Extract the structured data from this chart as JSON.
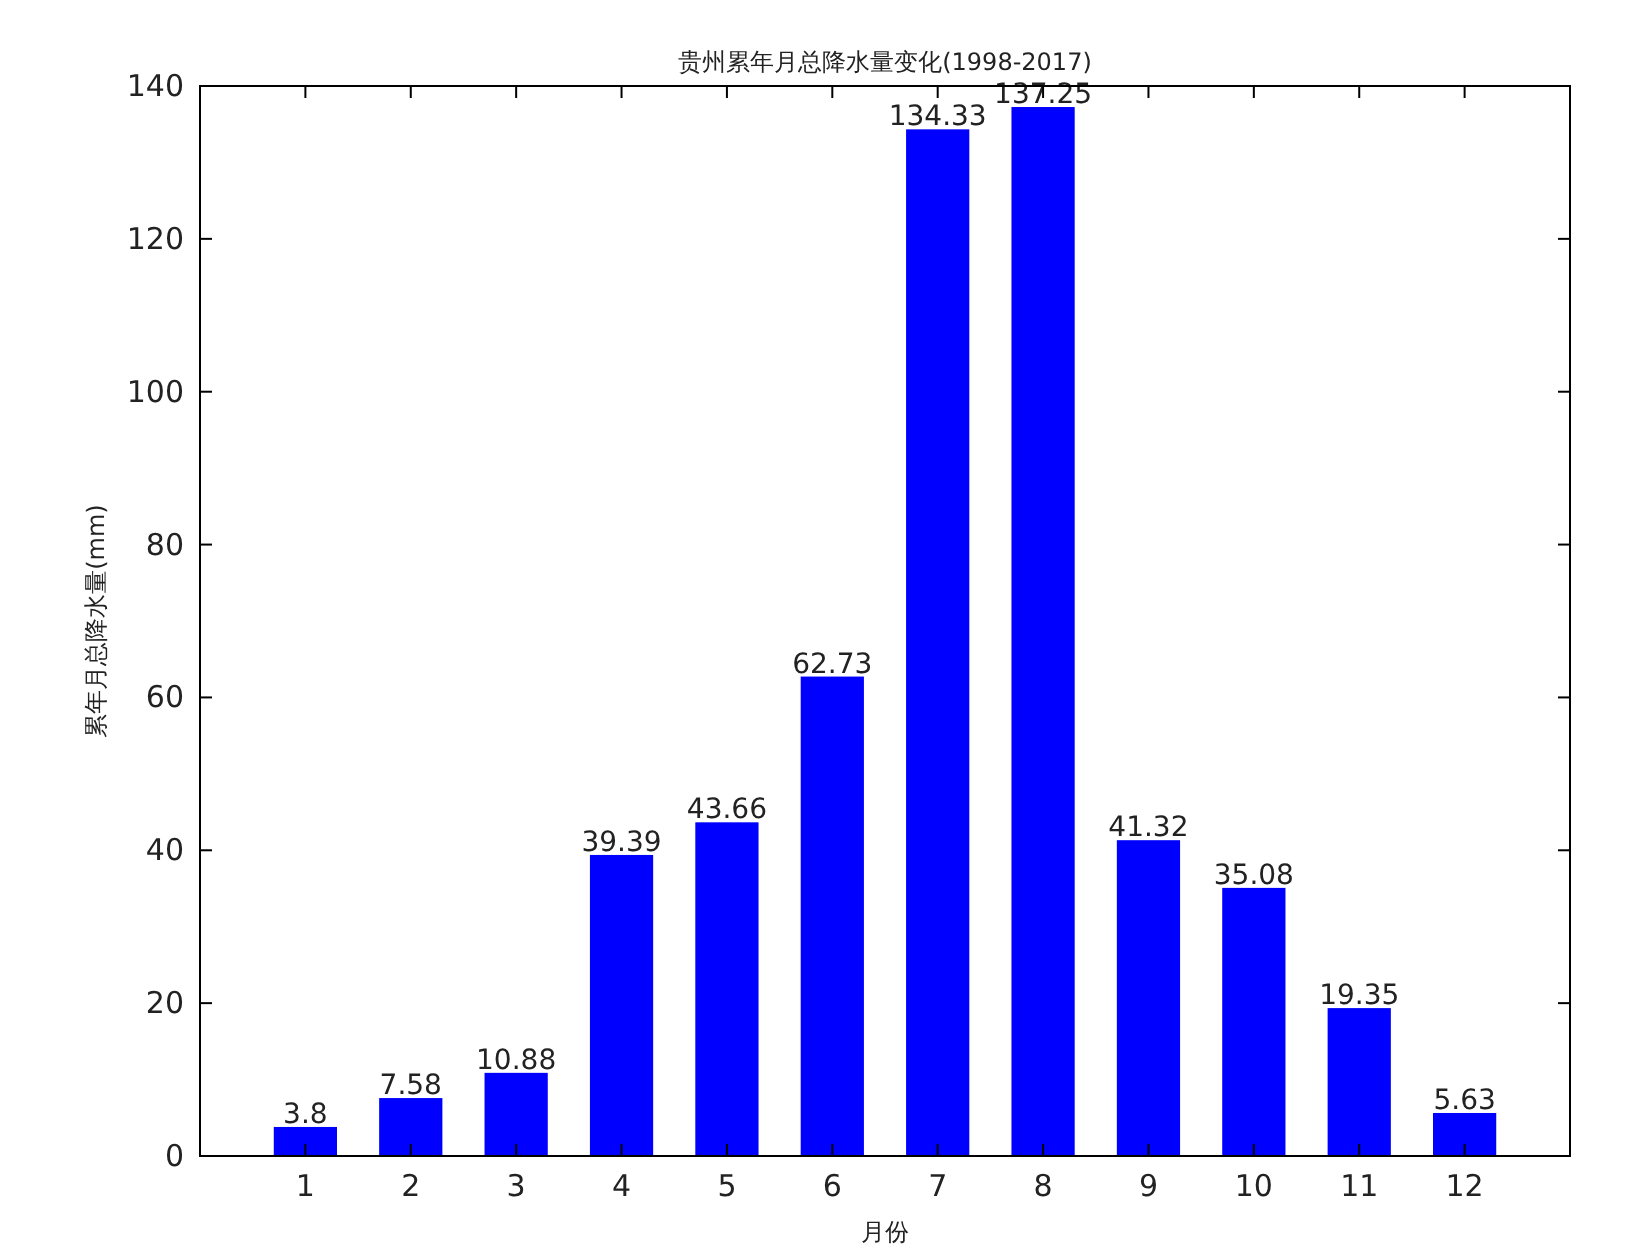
{
  "chart_data": {
    "type": "bar",
    "title": "贵州累年月总降水量变化(1998-2017)",
    "xlabel": "月份",
    "ylabel": "累年月总降水量(mm)",
    "categories": [
      "1",
      "2",
      "3",
      "4",
      "5",
      "6",
      "7",
      "8",
      "9",
      "10",
      "11",
      "12"
    ],
    "values": [
      3.8,
      7.58,
      10.88,
      39.39,
      43.66,
      62.73,
      134.33,
      137.25,
      41.32,
      35.08,
      19.35,
      5.63
    ],
    "color": "#0000ff",
    "ylim": [
      0,
      140
    ],
    "yticks": [
      0,
      20,
      40,
      60,
      80,
      100,
      120,
      140
    ],
    "data_labels": true
  }
}
